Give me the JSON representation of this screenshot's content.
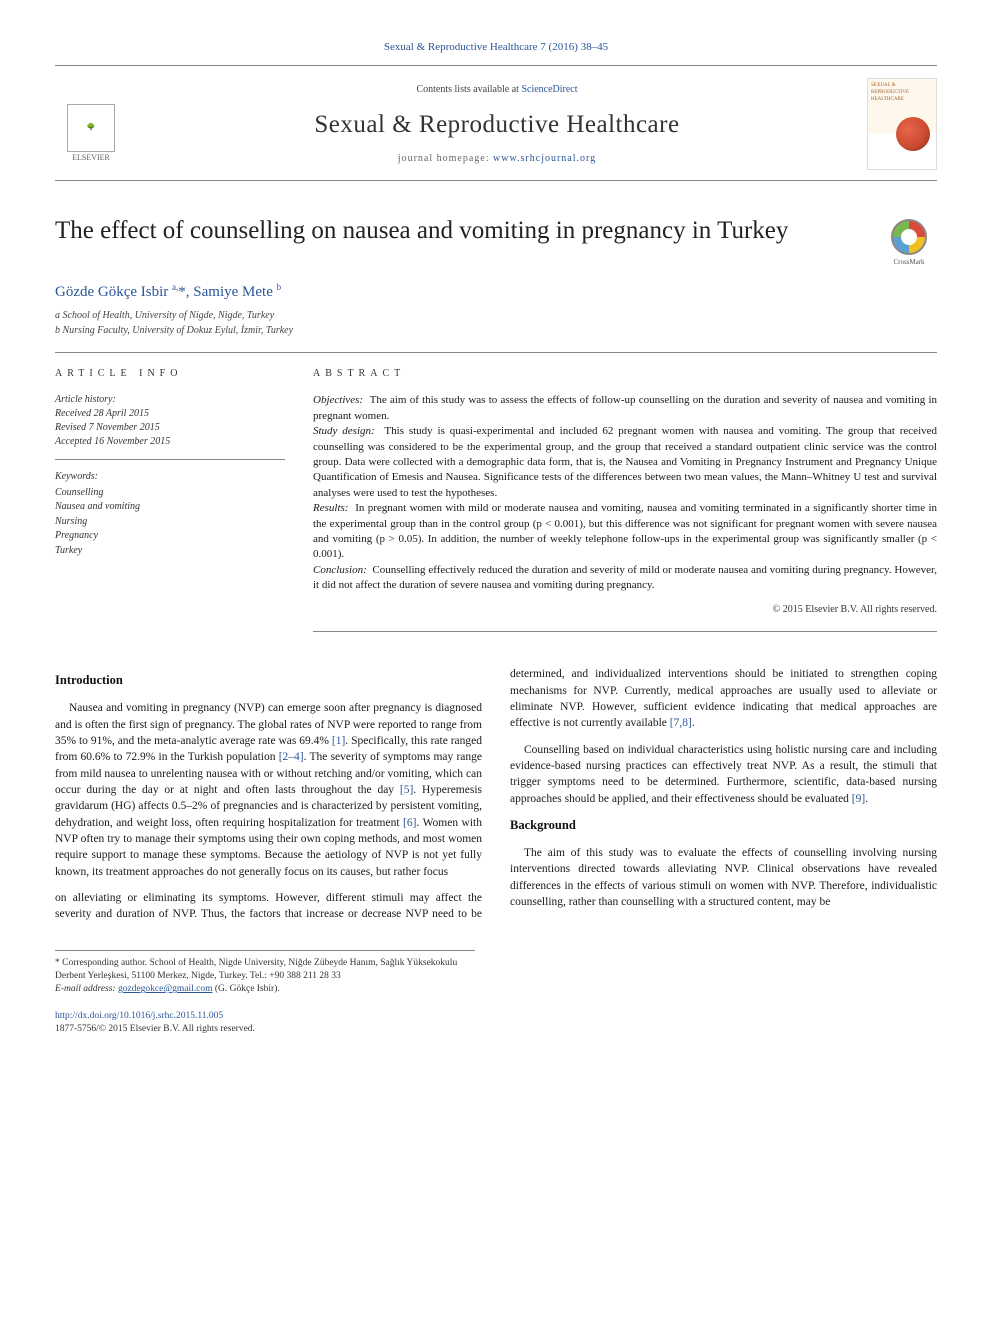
{
  "header": {
    "journal_ref": "Sexual & Reproductive Healthcare 7 (2016) 38–45",
    "contents_line_prefix": "Contents lists available at ",
    "contents_link": "ScienceDirect",
    "journal_title": "Sexual & Reproductive Healthcare",
    "homepage_prefix": "journal homepage: ",
    "homepage_url": "www.srhcjournal.org",
    "publisher_word": "ELSEVIER",
    "cover_label": "SEXUAL & REPRODUCTIVE HEALTHCARE"
  },
  "article": {
    "title": "The effect of counselling on nausea and vomiting in pregnancy in Turkey",
    "crossmark_label": "CrossMark",
    "authors_html": "Gözde Gökçe Isbir <sup>a,</sup>*, Samiye Mete <sup>b</sup>",
    "affiliations": [
      "a School of Health, University of Nigde, Nigde, Turkey",
      "b Nursing Faculty, University of Dokuz Eylul, İzmir, Turkey"
    ]
  },
  "info": {
    "head": "ARTICLE INFO",
    "history_label": "Article history:",
    "history": [
      "Received 28 April 2015",
      "Revised 7 November 2015",
      "Accepted 16 November 2015"
    ],
    "keywords_label": "Keywords:",
    "keywords": [
      "Counselling",
      "Nausea and vomiting",
      "Nursing",
      "Pregnancy",
      "Turkey"
    ]
  },
  "abstract": {
    "head": "ABSTRACT",
    "objectives_label": "Objectives:",
    "objectives": "The aim of this study was to assess the effects of follow-up counselling on the duration and severity of nausea and vomiting in pregnant women.",
    "design_label": "Study design:",
    "design": "This study is quasi-experimental and included 62 pregnant women with nausea and vomiting. The group that received counselling was considered to be the experimental group, and the group that received a standard outpatient clinic service was the control group. Data were collected with a demographic data form, that is, the Nausea and Vomiting in Pregnancy Instrument and Pregnancy Unique Quantification of Emesis and Nausea. Significance tests of the differences between two mean values, the Mann–Whitney U test and survival analyses were used to test the hypotheses.",
    "results_label": "Results:",
    "results": "In pregnant women with mild or moderate nausea and vomiting, nausea and vomiting terminated in a significantly shorter time in the experimental group than in the control group (p < 0.001), but this difference was not significant for pregnant women with severe nausea and vomiting (p > 0.05). In addition, the number of weekly telephone follow-ups in the experimental group was significantly smaller (p < 0.001).",
    "conclusion_label": "Conclusion:",
    "conclusion": "Counselling effectively reduced the duration and severity of mild or moderate nausea and vomiting during pregnancy. However, it did not affect the duration of severe nausea and vomiting during pregnancy.",
    "copyright": "© 2015 Elsevier B.V. All rights reserved."
  },
  "body": {
    "intro_head": "Introduction",
    "intro_p1a": "Nausea and vomiting in pregnancy (NVP) can emerge soon after pregnancy is diagnosed and is often the first sign of pregnancy. The global rates of NVP were reported to range from 35% to 91%, and the meta-analytic average rate was 69.4% ",
    "intro_ref1": "[1]",
    "intro_p1b": ". Specifically, this rate ranged from 60.6% to 72.9% in the Turkish population ",
    "intro_ref2": "[2–4]",
    "intro_p1c": ". The severity of symptoms may range from mild nausea to unrelenting nausea with or without retching and/or vomiting, which can occur during the day or at night and often lasts throughout the day ",
    "intro_ref3": "[5]",
    "intro_p1d": ". Hyperemesis gravidarum (HG) affects 0.5–2% of pregnancies and is characterized by persistent vomiting, dehydration, and weight loss, often requiring hospitalization for treatment ",
    "intro_ref4": "[6]",
    "intro_p1e": ". Women with NVP often try to manage their symptoms using their own coping methods, and most women require support to manage these symptoms. Because the aetiology of NVP is not yet fully known, its treatment approaches do not generally focus on its causes, but rather focus",
    "col2_p1a": "on alleviating or eliminating its symptoms. However, different stimuli may affect the severity and duration of NVP. Thus, the factors that increase or decrease NVP need to be determined, and individualized interventions should be initiated to strengthen coping mechanisms for NVP. Currently, medical approaches are usually used to alleviate or eliminate NVP. However, sufficient evidence indicating that medical approaches are effective is not currently available ",
    "col2_ref1": "[7,8]",
    "col2_p1b": ".",
    "col2_p2a": "Counselling based on individual characteristics using holistic nursing care and including evidence-based nursing practices can effectively treat NVP. As a result, the stimuli that trigger symptoms need to be determined. Furthermore, scientific, data-based nursing approaches should be applied, and their effectiveness should be evaluated ",
    "col2_ref2": "[9]",
    "col2_p2b": ".",
    "background_head": "Background",
    "background_p1": "The aim of this study was to evaluate the effects of counselling involving nursing interventions directed towards alleviating NVP. Clinical observations have revealed differences in the effects of various stimuli on women with NVP. Therefore, individualistic counselling, rather than counselling with a structured content, may be"
  },
  "footnotes": {
    "corr": "* Corresponding author. School of Health, Nigde University, Niğde Zübeyde Hanım, Sağlık Yüksekokulu Derbent Yerleşkesi, 51100 Merkez, Nigde, Turkey. Tel.: +90 388 211 28 33",
    "email_label": "E-mail address: ",
    "email": "gozdegokce@gmail.com",
    "email_suffix": " (G. Gökçe Isbir).",
    "doi": "http://dx.doi.org/10.1016/j.srhc.2015.11.005",
    "issn_rights": "1877-5756/© 2015 Elsevier B.V. All rights reserved."
  },
  "colors": {
    "link": "#2a5599",
    "rule": "#888888",
    "text": "#1a1a1a"
  },
  "typography": {
    "body_pt": 11.5,
    "title_pt": 25,
    "journal_title_pt": 25,
    "abstract_pt": 11,
    "footnote_pt": 9.5
  }
}
